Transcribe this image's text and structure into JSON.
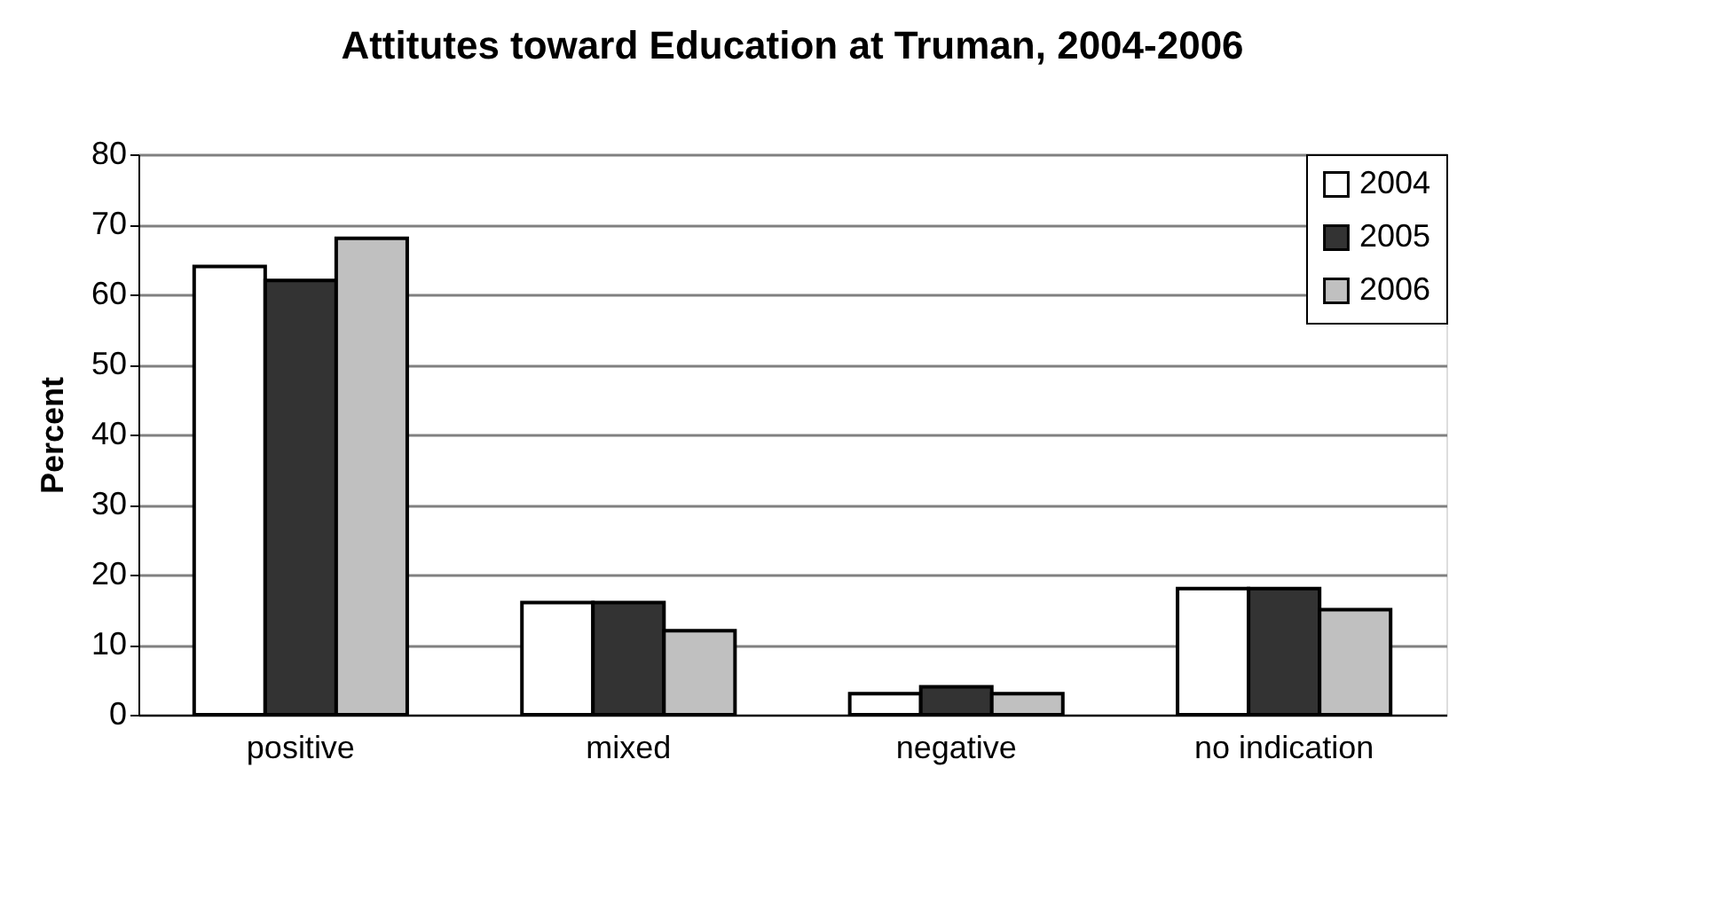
{
  "chart_data": {
    "type": "bar",
    "title": "Attitutes toward Education at Truman, 2004-2006",
    "ylabel": "Percent",
    "categories": [
      "positive",
      "mixed",
      "negative",
      "no indication"
    ],
    "series": [
      {
        "name": "2004",
        "color": "#ffffff",
        "values": [
          64,
          16,
          3,
          18
        ]
      },
      {
        "name": "2005",
        "color": "#333333",
        "values": [
          62,
          16,
          4,
          18
        ]
      },
      {
        "name": "2006",
        "color": "#c0c0c0",
        "values": [
          68,
          12,
          3,
          15
        ]
      }
    ],
    "ylim": [
      0,
      80
    ],
    "yticks": [
      0,
      10,
      20,
      30,
      40,
      50,
      60,
      70,
      80
    ],
    "grid": "y",
    "legend": "top right"
  }
}
